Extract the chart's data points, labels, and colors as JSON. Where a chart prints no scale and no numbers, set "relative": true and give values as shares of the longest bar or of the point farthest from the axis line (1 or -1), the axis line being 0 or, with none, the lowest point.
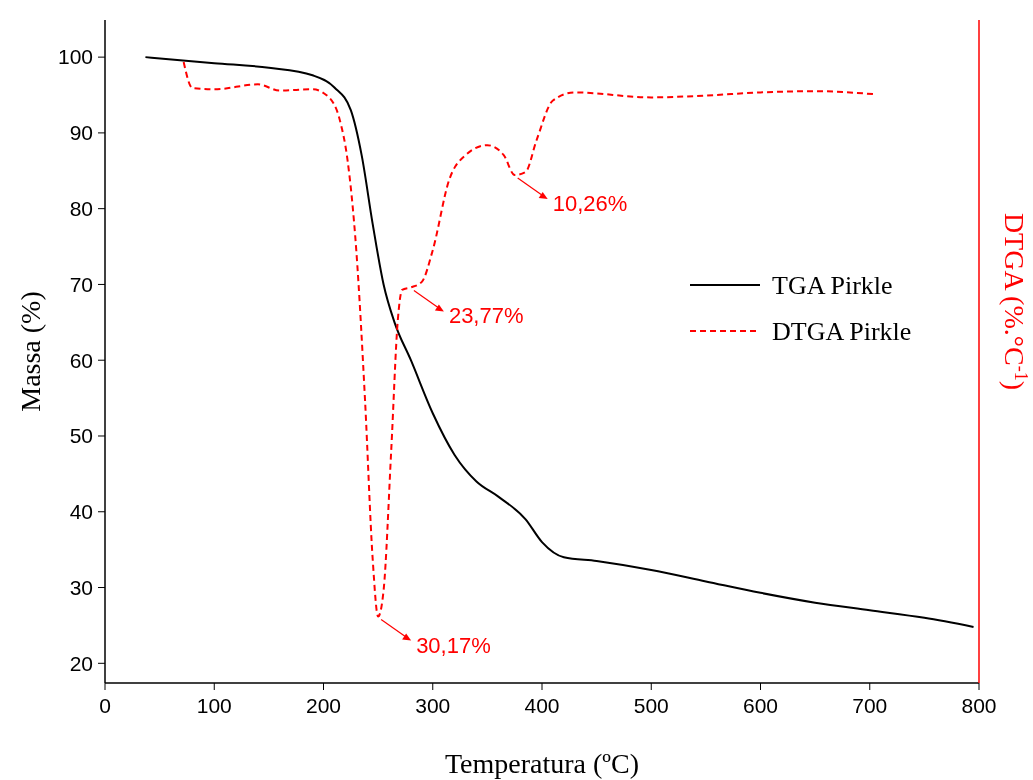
{
  "chart_data": [
    {
      "type": "line",
      "xlabel": "Temperatura (ºC)",
      "ylabel": "Massa (%)",
      "xlim": [
        0,
        800
      ],
      "xticks": [
        0,
        100,
        200,
        300,
        400,
        500,
        600,
        700,
        800
      ],
      "ylim": [
        17.4,
        104.9
      ],
      "yticks": [
        20,
        30,
        40,
        50,
        60,
        70,
        80,
        90,
        100
      ],
      "legend": "right",
      "line_style": "solid",
      "series": [
        {
          "name": "TGA Pirkle",
          "color": "#000000",
          "x": [
            37,
            100,
            150,
            190,
            210,
            225,
            235,
            245,
            255,
            265,
            280,
            300,
            320,
            340,
            360,
            385,
            400,
            420,
            450,
            500,
            550,
            600,
            650,
            700,
            750,
            795
          ],
          "values": [
            100,
            99.2,
            98.6,
            97.6,
            96,
            93,
            87,
            78,
            70,
            65,
            60,
            53,
            47.5,
            44,
            42,
            39,
            36,
            34,
            33.5,
            32.3,
            30.8,
            29.3,
            28,
            27,
            26,
            24.8
          ]
        }
      ]
    },
    {
      "type": "line",
      "relative": true,
      "ylabel": "DTGA (%.°C$^{-1}$)",
      "xlim": [
        0,
        800
      ],
      "legend": "right",
      "line_style": "dashed",
      "series": [
        {
          "name": "DTGA Pirkle",
          "color": "#ff0000",
          "x": [
            72,
            80,
            100,
            140,
            160,
            190,
            205,
            215,
            222,
            230,
            238,
            245,
            250,
            255,
            262,
            268,
            272,
            280,
            290,
            300,
            315,
            330,
            350,
            365,
            375,
            385,
            395,
            410,
            430,
            500,
            550,
            600,
            650,
            705
          ],
          "values": [
            1,
            0.958,
            0.956,
            0.964,
            0.954,
            0.956,
            0.943,
            0.906,
            0.842,
            0.697,
            0.456,
            0.2,
            0.107,
            0.149,
            0.375,
            0.584,
            0.633,
            0.637,
            0.646,
            0.697,
            0.81,
            0.85,
            0.866,
            0.85,
            0.818,
            0.823,
            0.874,
            0.938,
            0.951,
            0.943,
            0.946,
            0.951,
            0.953,
            0.948
          ]
        }
      ],
      "annotations": [
        {
          "text": "30,17%",
          "x": 250,
          "y": 0.107
        },
        {
          "text": "23,77%",
          "x": 280,
          "y": 0.637
        },
        {
          "text": "10,26%",
          "x": 375,
          "y": 0.818
        }
      ]
    }
  ]
}
